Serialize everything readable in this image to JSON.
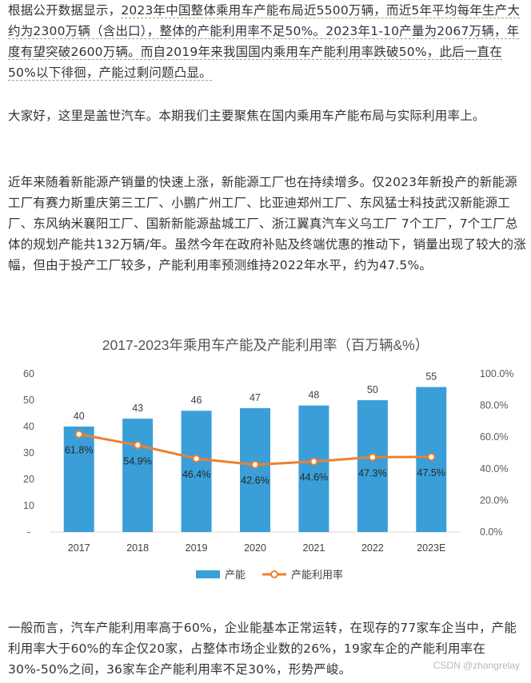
{
  "article": {
    "p1": {
      "seg1": "根据公开数据显示，",
      "seg2": "2023年中国整体乘用车产能布局近5500万辆，而近5年平均每年生产大约为2300万辆（含出口），整体的产能利用率不足50%。2023年1-10产量为2067万辆，年度有望突破2600万辆。而自2019年来我国国内乘用车产能利用率跌破50%，此后一直在50%以下徘徊，产能过剩问题凸显。"
    },
    "p2": "大家好，这里是盖世汽车。本期我们主要聚焦在国内乘用车产能布局与实际利用率上。",
    "p3": "近年来随着新能源产销量的快速上涨，新能源工厂也在持续增多。仅2023年新投产的新能源工厂有赛力斯重庆第三工厂、小鹏广州工厂、比亚迪郑州工厂、东风猛士科技武汉新能源工厂、东风纳米襄阳工厂、国新新能源盐城工厂、浙江翼真汽车义乌工厂 7个工厂，7个工厂总体的规划产能共132万辆/年。虽然今年在政府补贴及终端优惠的推动下，销量出现了较大的涨幅，但由于投产工厂较多，产能利用率预测维持2022年水平，约为47.5%。",
    "p4": "一般而言，汽车产能利用率高于60%，企业能基本正常运转，在现存的77家车企当中，产能利用率大于60%的车企仅20家，占整体市场企业数的26%，19家车企的产能利用率在30%-50%之间，36家车企产能利用率不足30%，形势严峻。"
  },
  "chart_data": {
    "type": "bar",
    "title": "2017-2023年乘用车产能及产能利用率（百万辆&%）",
    "categories": [
      "2017",
      "2018",
      "2019",
      "2020",
      "2021",
      "2022",
      "2023E"
    ],
    "series": [
      {
        "name": "产能",
        "type": "bar",
        "axis": "left",
        "values": [
          40,
          43,
          46,
          47,
          48,
          50,
          55
        ],
        "labels": [
          "40",
          "43",
          "46",
          "47",
          "48",
          "50",
          "55"
        ],
        "color": "#3a9fd8"
      },
      {
        "name": "产能利用率",
        "type": "line",
        "axis": "right",
        "values": [
          61.8,
          54.9,
          46.4,
          42.6,
          44.6,
          47.3,
          47.5
        ],
        "labels": [
          "61.8%",
          "54.9%",
          "46.4%",
          "42.6%",
          "44.6%",
          "47.3%",
          "47.5%"
        ],
        "color": "#f07f2c"
      }
    ],
    "y_left": {
      "range": [
        0,
        60
      ],
      "ticks": [
        "-",
        "10",
        "20",
        "30",
        "40",
        "50",
        "60"
      ]
    },
    "y_right": {
      "range": [
        0,
        100
      ],
      "ticks": [
        "0.0%",
        "20.0%",
        "40.0%",
        "60.0%",
        "80.0%",
        "100.0%"
      ]
    },
    "grid": false,
    "legend": "bottom"
  },
  "watermark": "CSDN @zhangrelay"
}
